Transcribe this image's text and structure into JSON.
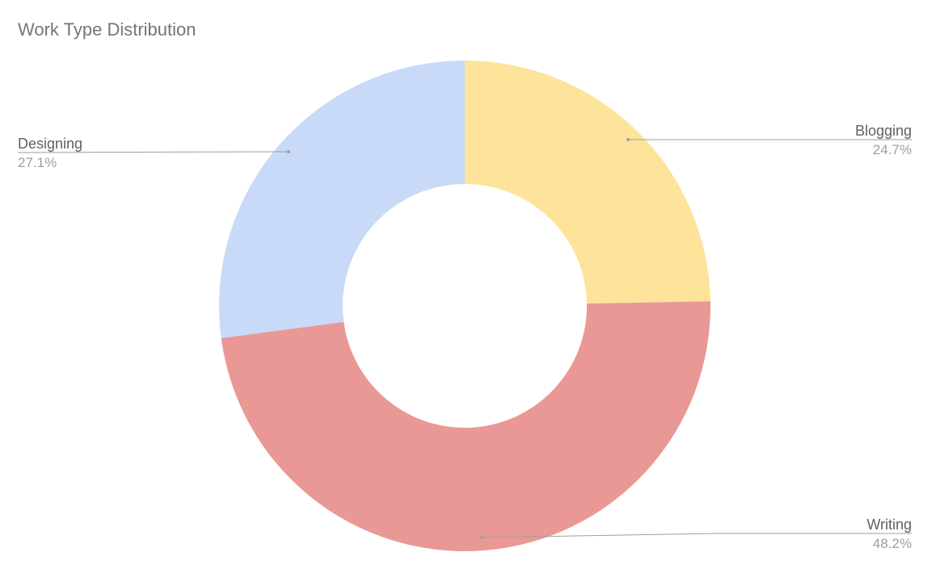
{
  "chart_data": {
    "type": "pie",
    "donut": true,
    "title": "Work Type Distribution",
    "categories": [
      "Blogging",
      "Writing",
      "Designing"
    ],
    "values": [
      24.7,
      48.2,
      27.1
    ],
    "value_labels": [
      "24.7%",
      "48.2%",
      "27.1%"
    ],
    "colors": [
      "#fee49a",
      "#ea9896",
      "#c9d9f8"
    ],
    "start_angle_deg": 0,
    "direction": "clockwise",
    "legend": "labels-with-leader-lines"
  }
}
